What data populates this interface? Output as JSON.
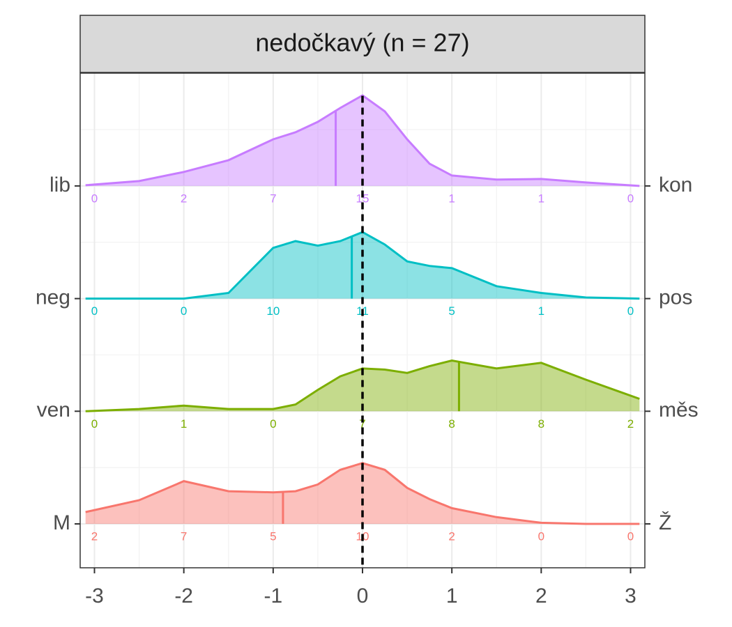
{
  "chart_data": {
    "type": "ridgeline",
    "title": "nedočkavý (n = 27)",
    "xlim": [
      -3.16,
      3.16
    ],
    "xticks": [
      -3,
      -2,
      -1,
      0,
      1,
      2,
      3
    ],
    "ref_x": 0,
    "grid": true,
    "x": [
      -3.1,
      -2.5,
      -2,
      -1.5,
      -1,
      -0.75,
      -0.5,
      -0.25,
      0,
      0.25,
      0.5,
      0.75,
      1,
      1.5,
      2,
      2.5,
      3.1
    ],
    "series": [
      {
        "left_label": "M",
        "right_label": "Ž",
        "color": "#F8766D",
        "mean": -0.89,
        "counts": [
          2,
          7,
          5,
          10,
          2,
          0,
          0
        ],
        "density": [
          0.105,
          0.21,
          0.38,
          0.29,
          0.28,
          0.29,
          0.35,
          0.48,
          0.54,
          0.48,
          0.32,
          0.22,
          0.14,
          0.06,
          0.01,
          0,
          0
        ]
      },
      {
        "left_label": "ven",
        "right_label": "měs",
        "color": "#7CAE00",
        "mean": 1.08,
        "counts": [
          0,
          1,
          0,
          7,
          8,
          8,
          2
        ],
        "density": [
          0,
          0.02,
          0.05,
          0.02,
          0.02,
          0.06,
          0.19,
          0.31,
          0.38,
          0.37,
          0.34,
          0.4,
          0.45,
          0.38,
          0.43,
          0.28,
          0.11
        ]
      },
      {
        "left_label": "neg",
        "right_label": "pos",
        "color": "#00BFC4",
        "mean": -0.12,
        "counts": [
          0,
          0,
          10,
          11,
          5,
          1,
          0
        ],
        "density": [
          0,
          0,
          0,
          0.05,
          0.45,
          0.51,
          0.47,
          0.51,
          0.59,
          0.48,
          0.33,
          0.29,
          0.27,
          0.11,
          0.05,
          0.01,
          0
        ]
      },
      {
        "left_label": "lib",
        "right_label": "kon",
        "color": "#C77CFF",
        "mean": -0.3,
        "counts": [
          0,
          2,
          7,
          15,
          1,
          1,
          0
        ],
        "density": [
          0.006,
          0.043,
          0.124,
          0.229,
          0.414,
          0.477,
          0.569,
          0.692,
          0.804,
          0.662,
          0.414,
          0.198,
          0.093,
          0.056,
          0.062,
          0.031,
          0
        ]
      }
    ]
  }
}
